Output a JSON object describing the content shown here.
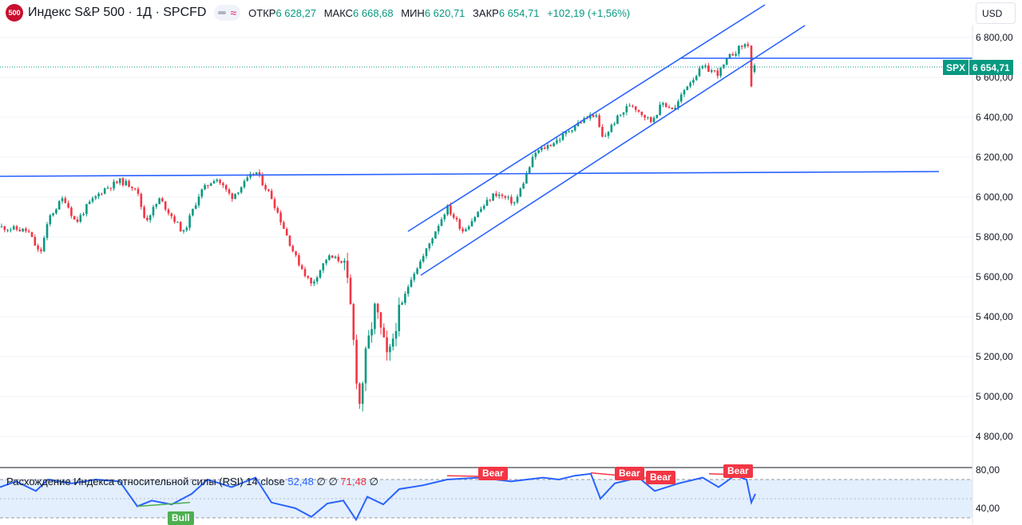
{
  "header": {
    "logo_text": "500",
    "title": "Индекс S&P 500 · 1Д · SPCFD",
    "open_label": "ОТКР",
    "open_value": "6 628,27",
    "high_label": "МАКС",
    "high_value": "6 668,68",
    "low_label": "МИН",
    "low_value": "6 620,71",
    "close_label": "ЗАКР",
    "close_value": "6 654,71",
    "change": "+102,19 (+1,56%)"
  },
  "currency": "USD",
  "price_badge": {
    "symbol": "SPX",
    "price": "6 654,71"
  },
  "price_axis": {
    "labels": [
      "6 800,00",
      "6 600,00",
      "6 400,00",
      "6 200,00",
      "6 000,00",
      "5 800,00",
      "5 600,00",
      "5 400,00",
      "5 200,00",
      "5 000,00",
      "4 800,00"
    ],
    "values": [
      6800,
      6600,
      6400,
      6200,
      6000,
      5800,
      5600,
      5400,
      5200,
      5000,
      4800
    ]
  },
  "rsi_axis": {
    "labels": [
      "80,00",
      "40,00"
    ],
    "values": [
      80,
      40
    ]
  },
  "rsi_legend": {
    "name": "Расхождение Индекса относительной силы (RSI)",
    "params": "14 close",
    "value1": "52,48",
    "zero1": "∅",
    "zero2": "∅",
    "value2": "71,48",
    "zero3": "∅"
  },
  "rsi_tags": {
    "bear": "Bear",
    "bull": "Bull"
  },
  "colors": {
    "up": "#089981",
    "down": "#f23645",
    "trend": "#2962ff",
    "rsi": "#2962ff",
    "rsi_band": "#e3effd"
  }
}
